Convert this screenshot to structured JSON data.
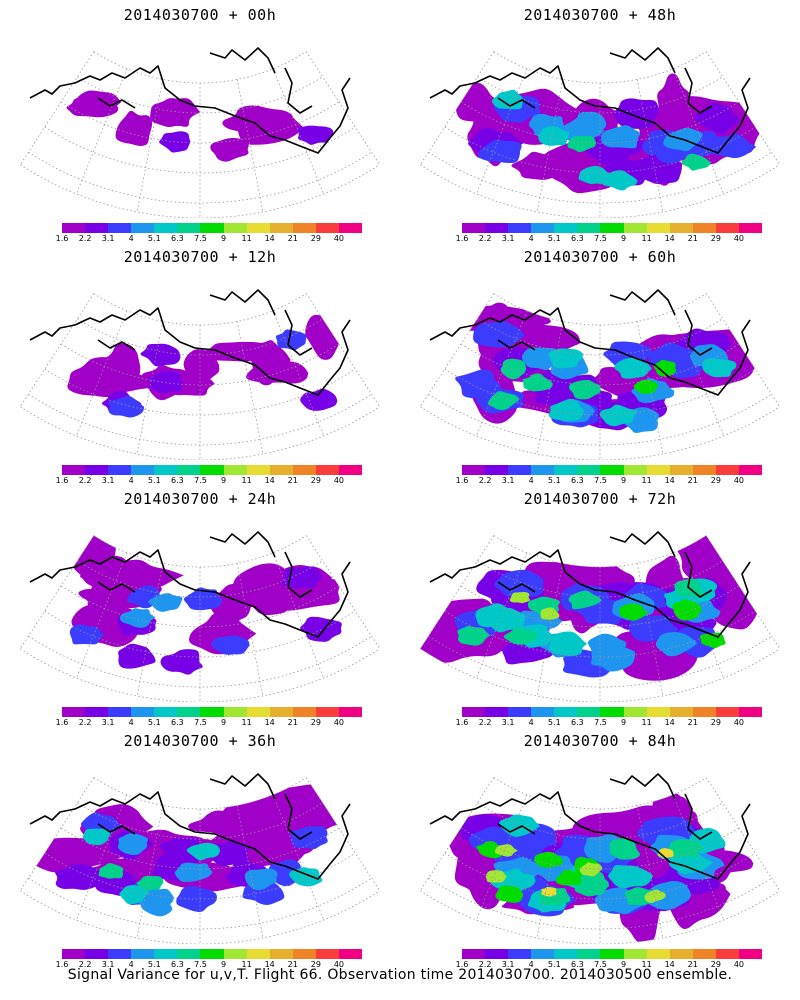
{
  "panels": [
    {
      "title": "2014030700 + 00h",
      "intensity": 0.15
    },
    {
      "title": "2014030700 + 48h",
      "intensity": 0.6
    },
    {
      "title": "2014030700 + 12h",
      "intensity": 0.25
    },
    {
      "title": "2014030700 + 60h",
      "intensity": 0.7
    },
    {
      "title": "2014030700 + 24h",
      "intensity": 0.35
    },
    {
      "title": "2014030700 + 72h",
      "intensity": 0.8
    },
    {
      "title": "2014030700 + 36h",
      "intensity": 0.5
    },
    {
      "title": "2014030700 + 84h",
      "intensity": 0.9
    }
  ],
  "colorbar": {
    "labels": [
      "1.6",
      "2.2",
      "3.1",
      "4",
      "5.1",
      "6.3",
      "7.5",
      "9",
      "11",
      "14",
      "21",
      "29",
      "40"
    ],
    "colors": [
      "#a000c8",
      "#7800e6",
      "#3c3cff",
      "#1e96f0",
      "#00c8c8",
      "#00d28c",
      "#00dc00",
      "#a0e632",
      "#e6dc32",
      "#e6af2d",
      "#f08228",
      "#fa3c3c",
      "#f00082"
    ]
  },
  "footer": "Signal Variance for u,v,T. Flight 66. Observation time 2014030700. 2014030500 ensemble."
}
